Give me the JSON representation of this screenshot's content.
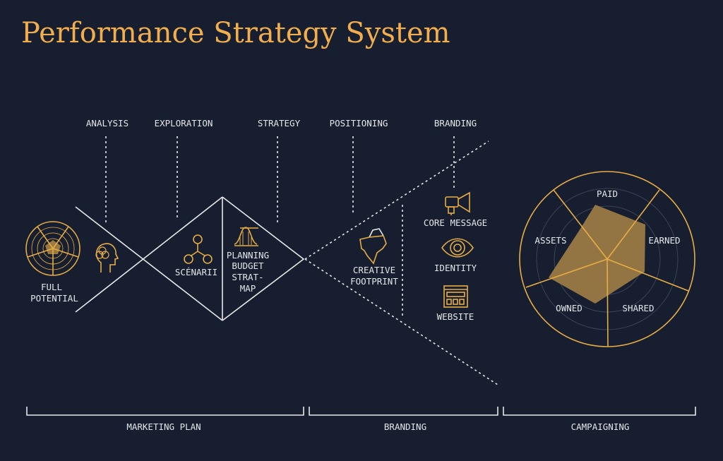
{
  "title": "Performance Strategy System",
  "stages": [
    "ANALYSIS",
    "EXPLORATION",
    "STRATEGY",
    "POSITIONING",
    "BRANDING"
  ],
  "items": {
    "full_potential": [
      "FULL",
      "POTENTIAL"
    ],
    "scenarii": "SCÉNARII",
    "planning": [
      "PLANNING",
      "BUDGET",
      "STRAT-",
      "MAP"
    ],
    "creative": [
      "CREATIVE",
      "FOOTPRINT"
    ],
    "core_message": "CORE MESSAGE",
    "identity": "IDENTITY",
    "website": "WEBSITE"
  },
  "radar_labels": [
    "PAID",
    "EARNED",
    "SHARED",
    "OWNED",
    "ASSETS"
  ],
  "phases": [
    "MARKETING PLAN",
    "BRANDING",
    "CAMPAIGNING"
  ],
  "colors": {
    "background": "#161e2f",
    "accent": "#f2ad4c",
    "line": "#e8e8ea"
  },
  "icons": [
    "radar-icon",
    "head-venn-icon",
    "scenario-tree-icon",
    "bell-curve-icon",
    "iceberg-icon",
    "megaphone-icon",
    "eye-icon",
    "browser-window-icon"
  ]
}
